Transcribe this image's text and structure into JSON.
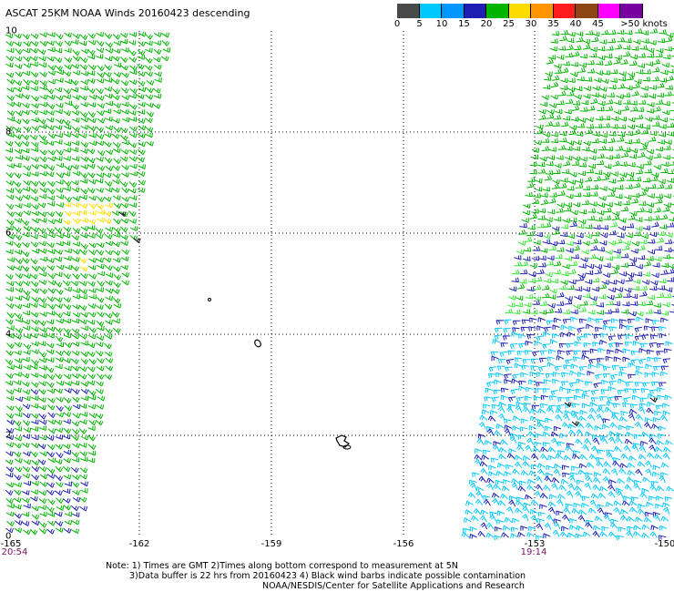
{
  "title": "ASCAT 25KM NOAA Winds 20160423 descending",
  "legend": {
    "bins": [
      {
        "label": "0",
        "color": "#4a4a4a"
      },
      {
        "label": "5",
        "color": "#00c8ff"
      },
      {
        "label": "10",
        "color": "#0096ff"
      },
      {
        "label": "15",
        "color": "#1e1eb4"
      },
      {
        "label": "20",
        "color": "#00b400"
      },
      {
        "label": "25",
        "color": "#ffdc00"
      },
      {
        "label": "30",
        "color": "#ff9600"
      },
      {
        "label": "35",
        "color": "#ff1e1e"
      },
      {
        "label": "40",
        "color": "#8c4614"
      },
      {
        "label": "45",
        "color": "#ff00ff"
      },
      {
        "label": ">50 knots",
        "color": "#7800a0"
      }
    ],
    "end_color": "#6400b4"
  },
  "axes": {
    "lat_ticks": [
      "10",
      "8",
      "6",
      "4",
      "2",
      "0"
    ],
    "lon_ticks": [
      "-165",
      "-162",
      "-159",
      "-156",
      "-153",
      "-150"
    ]
  },
  "times": {
    "left": "20:54",
    "right": "19:14"
  },
  "notes": {
    "line1": "Note: 1) Times are GMT 2)Times along bottom correspond to measurement at 5N",
    "line2": "3)Data buffer is 22 hrs from 20160423 4) Black wind barbs indicate possible contamination",
    "line3": "NOAA/NESDIS/Center for Satellite Applications and Research"
  },
  "colors": {
    "green": "#00b400",
    "blue": "#1e1eb4",
    "cyan": "#00c8ff",
    "yellow": "#ffdc00",
    "lime": "#32e632",
    "black": "#000000"
  }
}
